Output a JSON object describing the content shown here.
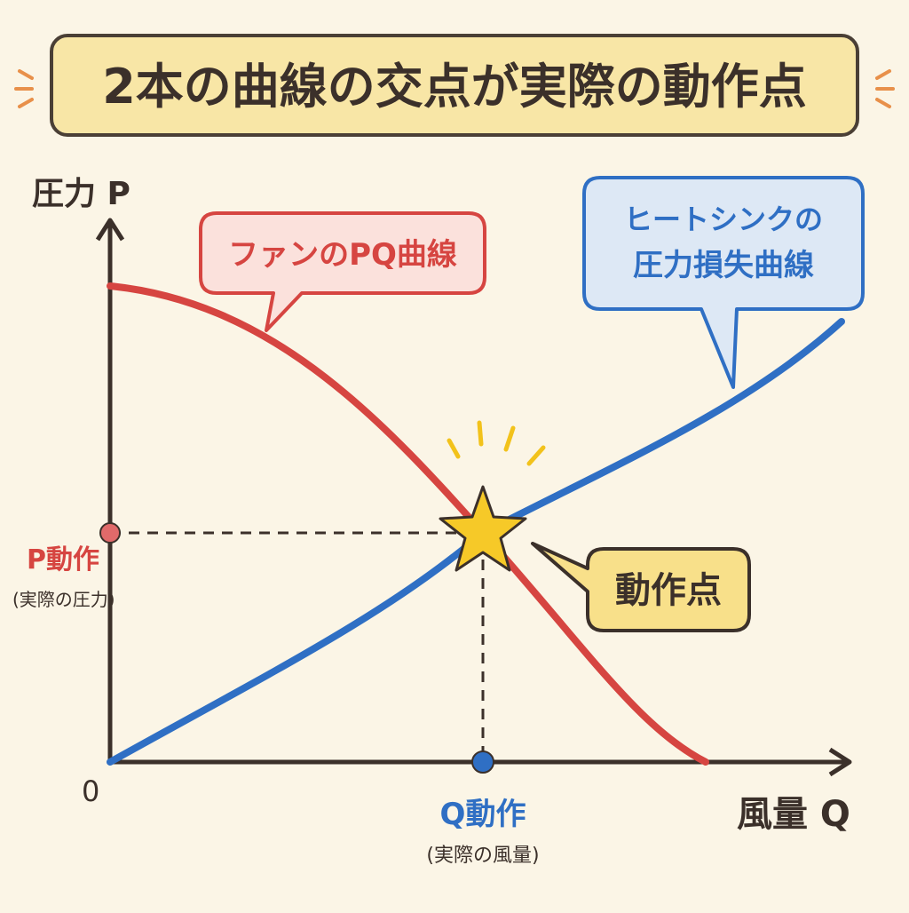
{
  "title": "2本の曲線の交点が実際の動作点",
  "axes": {
    "y_label": "圧力 P",
    "x_label": "風量 Q",
    "origin_label": "0"
  },
  "curves": {
    "fan": {
      "label": "ファンのPQ曲線",
      "color": "#d64541"
    },
    "heatsink": {
      "label_line1": "ヒートシンクの",
      "label_line2": "圧力損失曲線",
      "color": "#2f6fc4"
    }
  },
  "operating_point": {
    "label": "動作点",
    "p_label": "P動作",
    "p_sub": "(実際の圧力)",
    "q_label": "Q動作",
    "q_sub": "(実際の風量)",
    "star_color": "#f6c928"
  }
}
